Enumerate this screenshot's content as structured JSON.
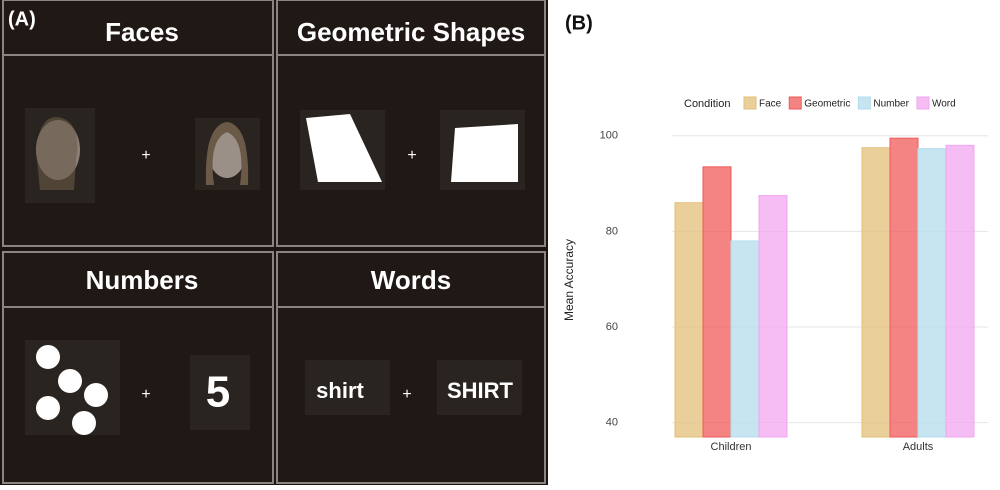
{
  "panel_a": {
    "label": "(A)",
    "fixation": "+",
    "panels": [
      {
        "title": "Faces"
      },
      {
        "title": "Geometric Shapes"
      },
      {
        "title": "Numbers",
        "stimulus": "5"
      },
      {
        "title": "Words",
        "left": "shirt",
        "right": "SHIRT"
      }
    ]
  },
  "panel_b": {
    "label": "(B)"
  },
  "chart_data": {
    "type": "bar",
    "y_label": "Mean Accuracy",
    "legend_title": "Condition",
    "legend": "top",
    "categories": [
      "Children",
      "Adults"
    ],
    "series": [
      {
        "name": "Face",
        "color": "#e3bf7a",
        "values": [
          86,
          97.5
        ]
      },
      {
        "name": "Geometric",
        "color": "#f05a5a",
        "values": [
          93.5,
          99.5
        ]
      },
      {
        "name": "Number",
        "color": "#b3dcec",
        "values": [
          78,
          97.3
        ]
      },
      {
        "name": "Word",
        "color": "#f3a6f0",
        "values": [
          87.5,
          98
        ]
      }
    ],
    "ylim": [
      37,
      103.3
    ],
    "yticks": [
      40,
      60,
      80,
      100
    ],
    "grid": true
  }
}
